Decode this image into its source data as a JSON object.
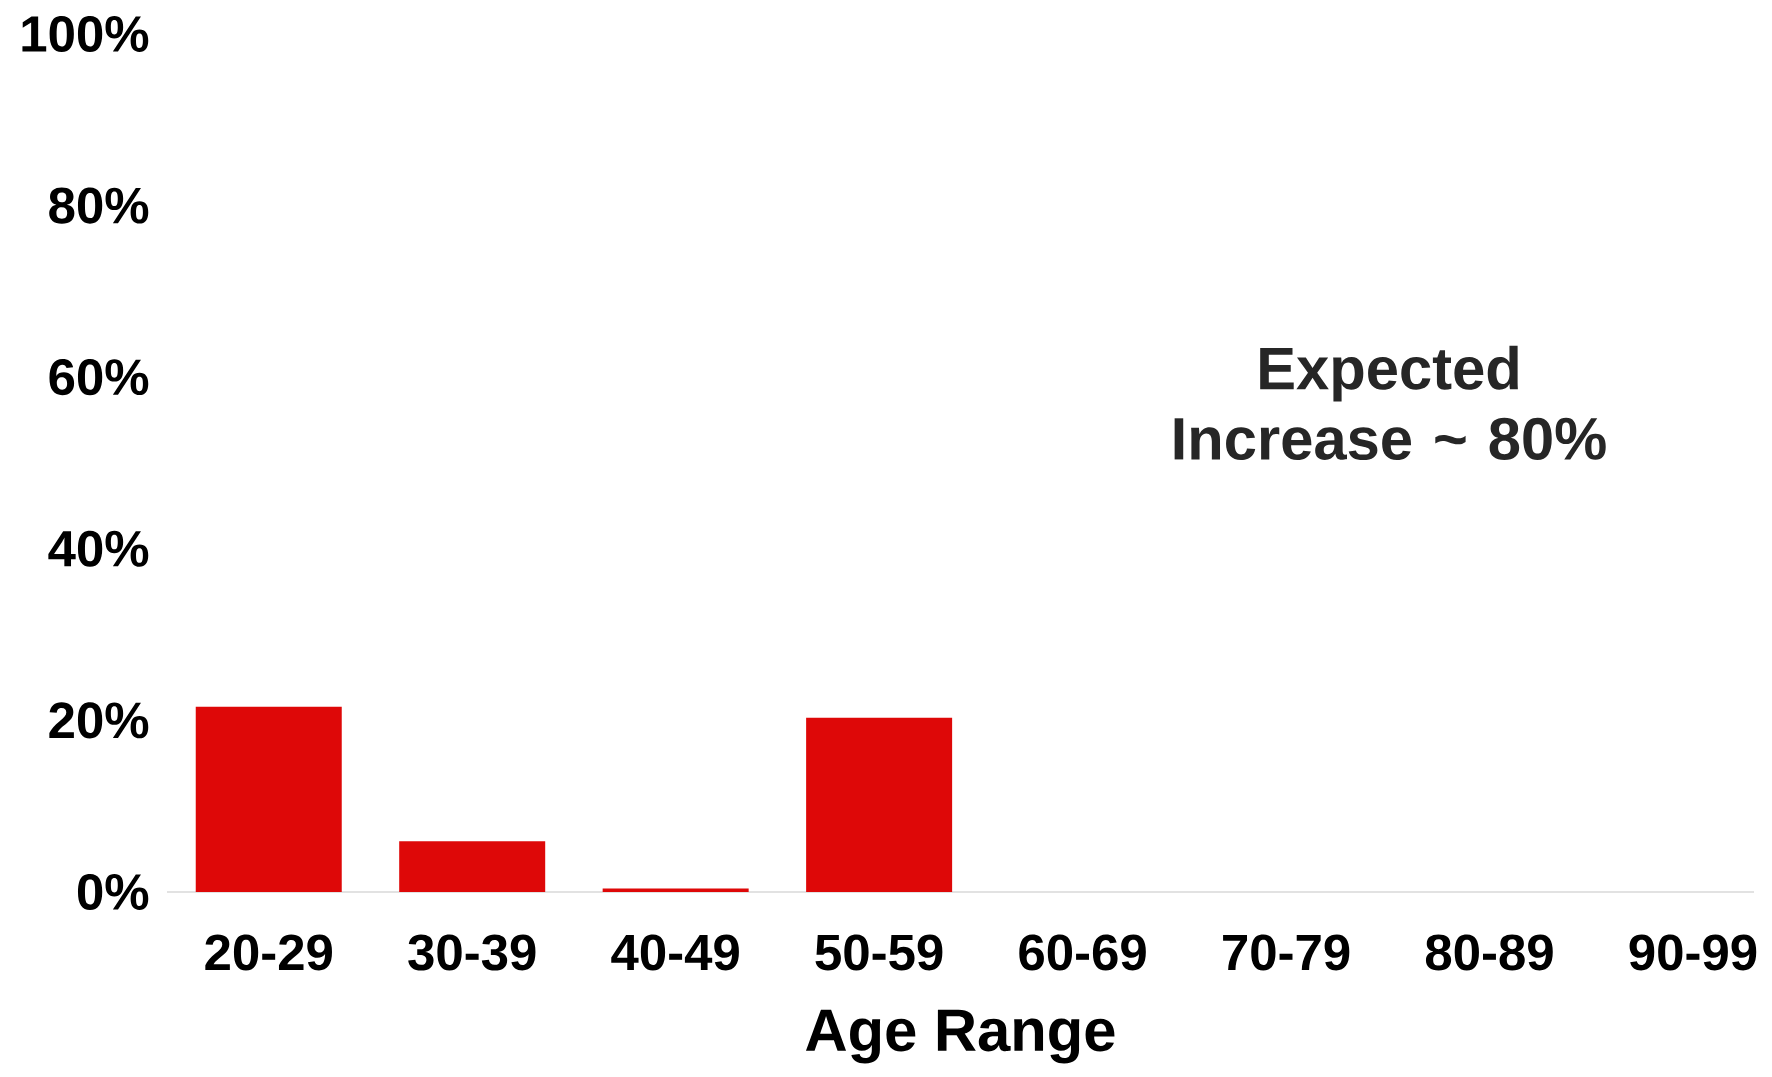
{
  "chart_data": {
    "type": "bar",
    "xlabel": "Age Range",
    "categories": [
      "20-29",
      "30-39",
      "40-49",
      "50-59",
      "60-69",
      "70-79",
      "80-89",
      "90-99"
    ],
    "values": [
      21.6,
      5.9,
      0.4,
      20.3,
      null,
      null,
      null,
      null
    ],
    "color": "#de0808",
    "ylim": [
      0,
      100
    ],
    "yticks": [
      {
        "value": 0,
        "label": "0%"
      },
      {
        "value": 20,
        "label": "20%"
      },
      {
        "value": 40,
        "label": "40%"
      },
      {
        "value": 60,
        "label": "60%"
      },
      {
        "value": 80,
        "label": "80%"
      },
      {
        "value": 100,
        "label": "100%"
      }
    ],
    "annotations": [
      "Expected Increase ~ 80%"
    ]
  }
}
